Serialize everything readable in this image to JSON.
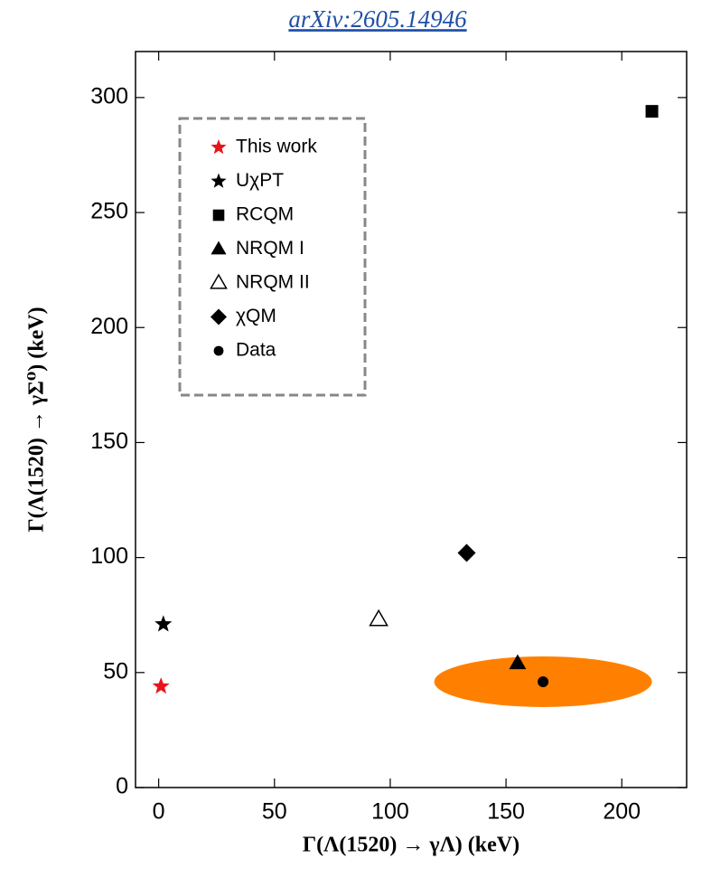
{
  "chart_data": {
    "type": "scatter",
    "title": "arXiv:2605.14946",
    "x_label": "Γ(Λ(1520) → γΛ) (keV)",
    "y_label": "Γ(Λ(1520) → γΣ⁰) (keV)",
    "xlim": [
      -10,
      228
    ],
    "ylim": [
      0,
      320
    ],
    "xticks": [
      0,
      50,
      100,
      150,
      200
    ],
    "yticks": [
      0,
      50,
      100,
      150,
      200,
      250,
      300
    ],
    "legend": "upper left",
    "series": [
      {
        "name": "This work",
        "color": "#e8141b",
        "marker": "star",
        "x": [
          1
        ],
        "y": [
          44
        ]
      },
      {
        "name": "UχPT",
        "color": "#000000",
        "marker": "star",
        "x": [
          2
        ],
        "y": [
          71
        ]
      },
      {
        "name": "RCQM",
        "color": "#000000",
        "marker": "square",
        "x": [
          213
        ],
        "y": [
          294
        ]
      },
      {
        "name": "NRQM I",
        "color": "#000000",
        "marker": "triangle",
        "x": [
          155
        ],
        "y": [
          54
        ]
      },
      {
        "name": "NRQM II",
        "color": "#000000",
        "marker": "open-triangle",
        "x": [
          95
        ],
        "y": [
          73
        ]
      },
      {
        "name": "χQM",
        "color": "#000000",
        "marker": "diamond",
        "x": [
          133
        ],
        "y": [
          102
        ]
      },
      {
        "name": "Data",
        "color": "#000000",
        "marker": "circle",
        "x": [
          166
        ],
        "y": [
          46
        ],
        "x_err": [
          47
        ],
        "y_err": [
          11
        ],
        "error_color": "#ff8000"
      }
    ]
  }
}
